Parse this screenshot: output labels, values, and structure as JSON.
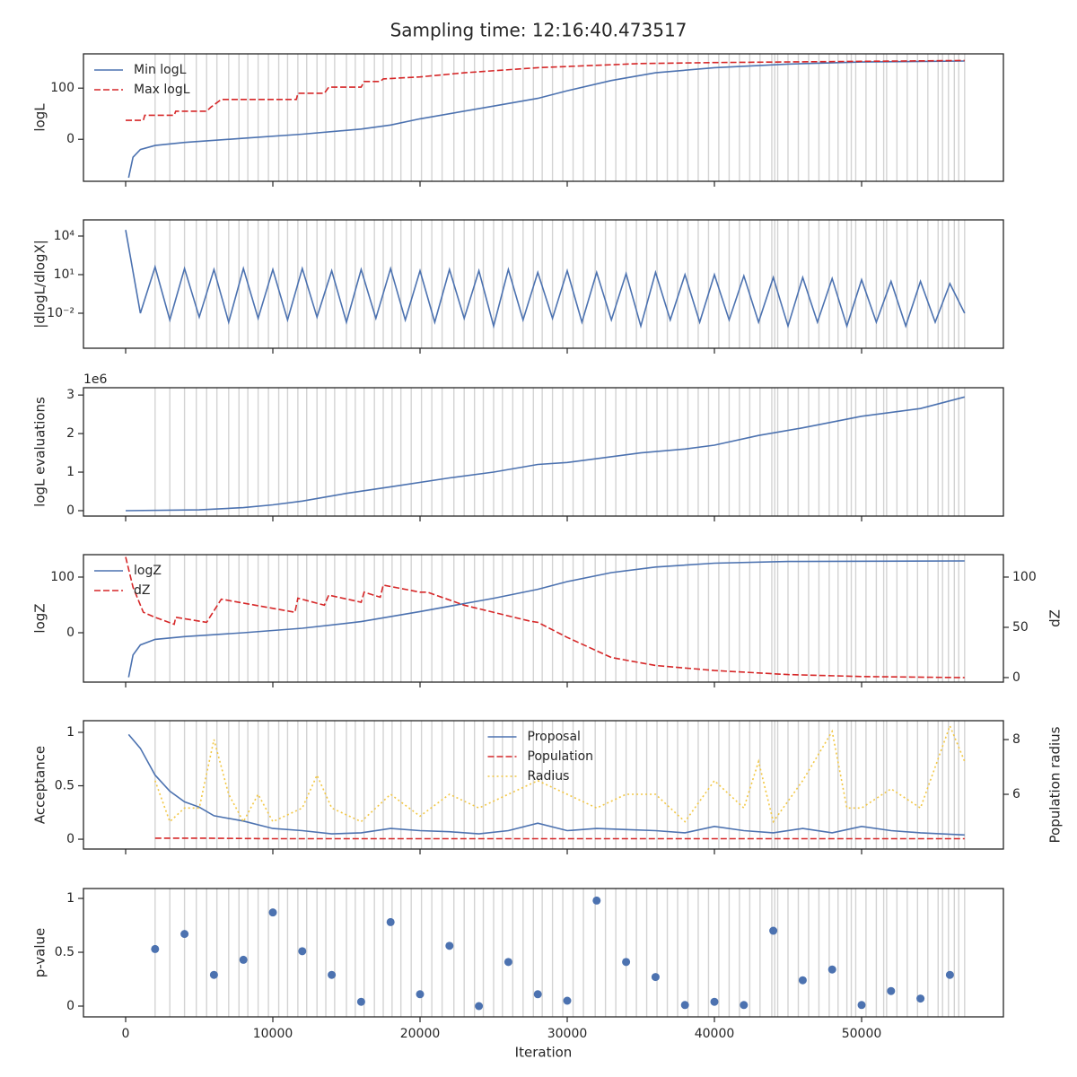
{
  "title": "Sampling time: 12:16:40.473517",
  "chart_data": [
    {
      "type": "line",
      "ylabel": "logL",
      "legend": "upper left",
      "xlim": [
        -2866,
        59634
      ],
      "xticks": [
        0,
        10000,
        20000,
        30000,
        40000,
        50000
      ],
      "ylim": [
        -82,
        167
      ],
      "yticks": [
        0,
        100
      ],
      "vline_color": "#d3d3d3",
      "vlines": [
        2000,
        3000,
        4000,
        4800,
        5500,
        6200,
        7000,
        7700,
        8300,
        9000,
        9700,
        10400,
        11000,
        11700,
        12300,
        13000,
        13600,
        14200,
        15000,
        15600,
        16200,
        16900,
        17500,
        18100,
        18700,
        19400,
        20100,
        20800,
        21500,
        22300,
        23000,
        23700,
        24300,
        25000,
        25600,
        26300,
        27000,
        27700,
        28300,
        29000,
        29700,
        30400,
        31100,
        31900,
        32600,
        33300,
        34000,
        34700,
        35400,
        36100,
        36800,
        37500,
        38200,
        38900,
        39600,
        40300,
        41000,
        41700,
        42400,
        43100,
        43900,
        44100,
        44300,
        45000,
        45700,
        46400,
        47100,
        47800,
        48400,
        49000,
        49300,
        49600,
        50300,
        51000,
        51500,
        51700,
        52400,
        53100,
        53800,
        54500,
        55200,
        55500,
        55900,
        56300,
        56600,
        57000
      ],
      "series": [
        {
          "name": "Min logL",
          "color": "#4c72b0",
          "style": "solid",
          "x": [
            200,
            500,
            1000,
            2000,
            4000,
            8000,
            12000,
            16000,
            18000,
            20000,
            25000,
            28000,
            30000,
            33000,
            36000,
            40000,
            45000,
            50000,
            57000
          ],
          "values": [
            -75,
            -35,
            -20,
            -12,
            -6,
            2,
            10,
            20,
            28,
            40,
            65,
            80,
            95,
            115,
            130,
            140,
            147,
            151,
            153
          ]
        },
        {
          "name": "Max logL",
          "color": "#d62728",
          "style": "dashed",
          "x": [
            0,
            1200,
            1300,
            3300,
            3400,
            5500,
            5800,
            6500,
            11600,
            11700,
            13500,
            13800,
            16000,
            16200,
            17300,
            17500,
            20000,
            23000,
            28000,
            35000,
            40000,
            57000
          ],
          "values": [
            37,
            37,
            47,
            47,
            55,
            55,
            63,
            78,
            78,
            90,
            90,
            102,
            102,
            113,
            113,
            118,
            122,
            130,
            140,
            148,
            150,
            154
          ]
        }
      ]
    },
    {
      "type": "line",
      "ylabel": "|dlogL/dlogX|",
      "yscale": "log",
      "xlim": [
        -2866,
        59634
      ],
      "xticks": [
        0,
        10000,
        20000,
        30000,
        40000,
        50000
      ],
      "ylim": [
        1.9e-05,
        180000
      ],
      "yticks": [
        {
          "value": 0.01,
          "label": "10⁻²"
        },
        {
          "value": 10,
          "label": "10¹"
        },
        {
          "value": 10000,
          "label": "10⁴"
        }
      ],
      "series": [
        {
          "color": "#4c72b0",
          "style": "solid",
          "x": [
            0,
            1000,
            2000,
            3000,
            4000,
            5000,
            6000,
            7000,
            8000,
            9000,
            10000,
            11000,
            12000,
            13000,
            14000,
            15000,
            16000,
            17000,
            18000,
            19000,
            20000,
            21000,
            22000,
            23000,
            24000,
            25000,
            26000,
            27000,
            28000,
            29000,
            30000,
            31000,
            32000,
            33000,
            34000,
            35000,
            36000,
            37000,
            38000,
            39000,
            40000,
            41000,
            42000,
            43000,
            44000,
            45000,
            46000,
            47000,
            48000,
            49000,
            50000,
            51000,
            52000,
            53000,
            54000,
            55000,
            56000,
            57000
          ],
          "values": [
            30000,
            0.01,
            40,
            0.003,
            30,
            0.005,
            25,
            0.002,
            30,
            0.004,
            25,
            0.003,
            30,
            0.005,
            20,
            0.002,
            25,
            0.004,
            30,
            0.003,
            20,
            0.002,
            25,
            0.004,
            20,
            0.001,
            25,
            0.003,
            15,
            0.004,
            20,
            0.002,
            15,
            0.003,
            12,
            0.001,
            15,
            0.003,
            10,
            0.002,
            10,
            0.003,
            8,
            0.002,
            6,
            0.001,
            6,
            0.002,
            5,
            0.001,
            4,
            0.002,
            3,
            0.001,
            3,
            0.002,
            2,
            0.01
          ]
        }
      ]
    },
    {
      "type": "line",
      "ylabel": "logL evaluations",
      "y_offset_label": "1e6",
      "xlim": [
        -2866,
        59634
      ],
      "xticks": [
        0,
        10000,
        20000,
        30000,
        40000,
        50000
      ],
      "ylim": [
        -140000,
        3190000
      ],
      "yticks": [
        0,
        {
          "value": 1000000,
          "label": "1"
        },
        {
          "value": 2000000,
          "label": "2"
        },
        {
          "value": 3000000,
          "label": "3"
        }
      ],
      "series": [
        {
          "color": "#4c72b0",
          "style": "solid",
          "x": [
            0,
            5000,
            8000,
            10000,
            12000,
            15000,
            18000,
            22000,
            25000,
            28000,
            30000,
            35000,
            38000,
            40000,
            43000,
            46000,
            50000,
            54000,
            57000
          ],
          "values": [
            0,
            20000,
            80000,
            150000,
            250000,
            450000,
            620000,
            850000,
            1000000,
            1200000,
            1250000,
            1500000,
            1600000,
            1700000,
            1950000,
            2150000,
            2450000,
            2650000,
            2950000
          ]
        }
      ]
    },
    {
      "type": "line",
      "ylabel": "logZ",
      "y2label": "dZ",
      "legend": "upper left",
      "xlim": [
        -2866,
        59634
      ],
      "xticks": [
        0,
        10000,
        20000,
        30000,
        40000,
        50000
      ],
      "ylim": [
        -88.7,
        140.3
      ],
      "yticks": [
        0,
        100
      ],
      "y2lim": [
        -4.5,
        122.3
      ],
      "y2ticks": [
        0,
        50,
        100
      ],
      "series": [
        {
          "name": "logZ",
          "color": "#4c72b0",
          "style": "solid",
          "x": [
            200,
            500,
            1000,
            2000,
            4000,
            8000,
            12000,
            16000,
            20000,
            25000,
            28000,
            30000,
            33000,
            36000,
            40000,
            45000,
            57000
          ],
          "values": [
            -80,
            -40,
            -22,
            -12,
            -7,
            0,
            8,
            20,
            38,
            62,
            78,
            92,
            108,
            118,
            125,
            128,
            129
          ]
        },
        {
          "name": "dZ",
          "color": "#d62728",
          "style": "dashed",
          "axis": "y2",
          "x": [
            0,
            500,
            1200,
            2000,
            3300,
            3400,
            5500,
            6500,
            11500,
            11700,
            13500,
            13800,
            16000,
            16200,
            17300,
            17500,
            20000,
            20500,
            23000,
            27500,
            28000,
            30000,
            33000,
            36000,
            40000,
            45000,
            50000,
            57000
          ],
          "values": [
            120,
            90,
            65,
            60,
            53,
            60,
            55,
            78,
            65,
            79,
            72,
            82,
            75,
            85,
            80,
            92,
            85,
            85,
            72,
            56,
            55,
            40,
            20,
            12,
            7,
            3,
            1,
            0
          ]
        }
      ]
    },
    {
      "type": "line",
      "ylabel": "Acceptance",
      "y2label": "Population radius",
      "legend": "upper center",
      "xlim": [
        -2866,
        59634
      ],
      "xticks": [
        0,
        10000,
        20000,
        30000,
        40000,
        50000
      ],
      "ylim": [
        -0.092,
        1.109
      ],
      "yticks": [
        0.0,
        0.5,
        1.0
      ],
      "y2lim": [
        4.0,
        8.69
      ],
      "y2ticks": [
        6,
        8
      ],
      "series": [
        {
          "name": "Proposal",
          "color": "#4c72b0",
          "style": "solid",
          "x": [
            200,
            1000,
            2000,
            3000,
            4000,
            5000,
            6000,
            8000,
            10000,
            12000,
            14000,
            16000,
            18000,
            20000,
            22000,
            24000,
            26000,
            28000,
            30000,
            32000,
            34000,
            36000,
            38000,
            40000,
            42000,
            44000,
            46000,
            48000,
            50000,
            52000,
            54000,
            57000
          ],
          "values": [
            0.98,
            0.85,
            0.6,
            0.45,
            0.35,
            0.3,
            0.22,
            0.17,
            0.1,
            0.08,
            0.05,
            0.06,
            0.1,
            0.08,
            0.07,
            0.05,
            0.08,
            0.15,
            0.08,
            0.1,
            0.09,
            0.08,
            0.06,
            0.12,
            0.08,
            0.06,
            0.1,
            0.06,
            0.12,
            0.08,
            0.06,
            0.04
          ]
        },
        {
          "name": "Population",
          "color": "#d62728",
          "style": "dashed",
          "x": [
            2000,
            5000,
            10000,
            20000,
            30000,
            40000,
            57000
          ],
          "values": [
            0.01,
            0.01,
            0.005,
            0.005,
            0.005,
            0.005,
            0.005
          ]
        },
        {
          "name": "Radius",
          "color": "#f2c744",
          "style": "dotted",
          "axis": "y2",
          "x": [
            2000,
            3000,
            4000,
            5000,
            6000,
            7000,
            8000,
            9000,
            10000,
            12000,
            13000,
            14000,
            16000,
            18000,
            20000,
            22000,
            24000,
            26000,
            28000,
            30000,
            32000,
            34000,
            36000,
            38000,
            40000,
            42000,
            43000,
            44000,
            46000,
            48000,
            49000,
            50000,
            52000,
            54000,
            56000,
            57000
          ],
          "values": [
            6.5,
            5,
            5.5,
            5.5,
            8,
            6,
            5,
            6,
            5,
            5.5,
            6.7,
            5.5,
            5,
            6,
            5.2,
            6,
            5.5,
            6,
            6.5,
            6,
            5.5,
            6,
            6,
            5,
            6.5,
            5.5,
            7.2,
            5,
            6.5,
            8.3,
            5.5,
            5.5,
            6.2,
            5.5,
            8.5,
            7.2
          ]
        }
      ]
    },
    {
      "type": "scatter",
      "ylabel": "p-value",
      "xlabel": "Iteration",
      "xlim": [
        -2866,
        59634
      ],
      "xticks": [
        0,
        10000,
        20000,
        30000,
        40000,
        50000
      ],
      "ylim": [
        -0.1,
        1.092
      ],
      "yticks": [
        0.0,
        0.5,
        1.0
      ],
      "series": [
        {
          "color": "#4c72b0",
          "x": [
            2000,
            4000,
            6000,
            8000,
            10000,
            12000,
            14000,
            16000,
            18000,
            20000,
            22000,
            24000,
            26000,
            28000,
            30000,
            32000,
            34000,
            36000,
            38000,
            40000,
            42000,
            44000,
            46000,
            48000,
            50000,
            52000,
            54000,
            56000
          ],
          "values": [
            0.53,
            0.67,
            0.29,
            0.43,
            0.87,
            0.51,
            0.29,
            0.04,
            0.78,
            0.11,
            0.56,
            0.0,
            0.41,
            0.11,
            0.05,
            0.98,
            0.41,
            0.27,
            0.01,
            0.04,
            0.01,
            0.7,
            0.24,
            0.34,
            0.01,
            0.14,
            0.07,
            0.29
          ]
        }
      ]
    }
  ]
}
